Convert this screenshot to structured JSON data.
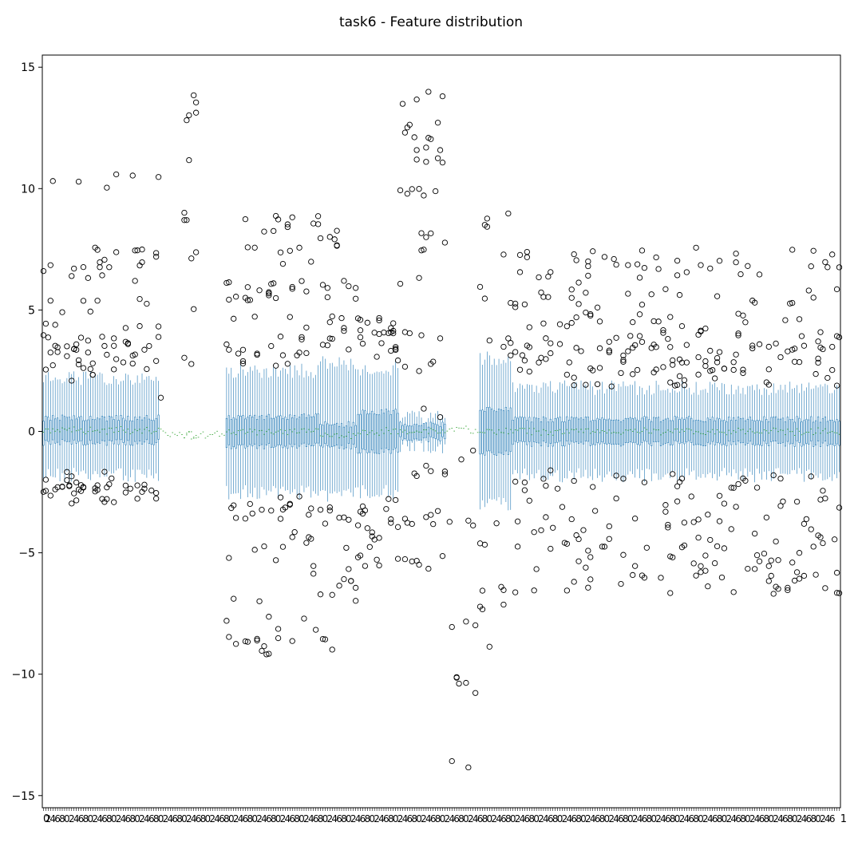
{
  "chart_data": {
    "type": "boxplot",
    "title": "task6 - Feature distribution",
    "xlabel": "",
    "ylabel": "",
    "ylim": [
      -15.5,
      15.5
    ],
    "y_ticks": [
      -15,
      -10,
      -5,
      0,
      5,
      10,
      15
    ],
    "y_tick_labels": [
      "−15",
      "−10",
      "−5",
      "0",
      "5",
      "10",
      "15"
    ],
    "x_tick_label_start": "0",
    "x_tick_label_end": "1",
    "grid": false,
    "legend": "none",
    "feature_count": 340,
    "colors": {
      "box": "#1f77b4",
      "median": "#2ca02c",
      "flier": "#000000",
      "whisker": "#000000"
    },
    "feature_groups": [
      {
        "from": 0,
        "to": 50,
        "q1": -0.45,
        "q3": 0.55,
        "whisker_low": -1.8,
        "whisker_high": 2.2,
        "fliers_high": [
          2.4,
          2.8,
          3.2,
          3.6,
          4.1,
          5.2,
          6.4,
          7.2,
          10.3
        ],
        "fliers_low": [
          -2.0,
          -2.4,
          -2.6
        ]
      },
      {
        "from": 50,
        "to": 52,
        "q1": -0.1,
        "q3": 0.1,
        "whisker_low": -0.15,
        "whisker_high": 0.2,
        "fliers_high": [
          1.2,
          2.5,
          5.0,
          9.9,
          11.1
        ],
        "fliers_low": []
      },
      {
        "from": 52,
        "to": 78,
        "q1": -0.2,
        "q3": -0.1,
        "whisker_low": -0.2,
        "whisker_high": -0.1,
        "fliers_high": [],
        "fliers_low": []
      },
      {
        "from": 60,
        "to": 66,
        "q1": -0.2,
        "q3": -0.1,
        "whisker_low": -0.2,
        "whisker_high": -0.1,
        "fliers_high": [
          3.0,
          5.0,
          7.0,
          9.0,
          11.2,
          13.2,
          14.1
        ],
        "fliers_low": []
      },
      {
        "from": 78,
        "to": 118,
        "q1": -0.6,
        "q3": 0.6,
        "whisker_low": -2.5,
        "whisker_high": 2.5,
        "fliers_high": [
          3.0,
          3.6,
          4.4,
          5.8,
          7.3,
          8.6
        ],
        "fliers_low": [
          -3.0,
          -3.5,
          -4.5,
          -5.5,
          -7.0,
          -8.0,
          -8.8
        ]
      },
      {
        "from": 118,
        "to": 134,
        "q1": -0.6,
        "q3": 0.3,
        "whisker_low": -2.6,
        "whisker_high": 2.8,
        "fliers_high": [
          3.5,
          4.5,
          5.8,
          7.9
        ],
        "fliers_low": [
          -3.5,
          -4.6,
          -6.0,
          -6.8,
          -8.7
        ]
      },
      {
        "from": 134,
        "to": 152,
        "q1": -0.8,
        "q3": 0.8,
        "whisker_low": -2.5,
        "whisker_high": 2.6,
        "fliers_high": [
          3.0,
          3.8,
          4.3
        ],
        "fliers_low": [
          -3.0,
          -3.8,
          -4.5,
          -5.5
        ]
      },
      {
        "from": 152,
        "to": 172,
        "q1": -0.3,
        "q3": 0.3,
        "whisker_low": -0.6,
        "whisker_high": 0.6,
        "fliers_high": [
          0.9,
          2.5,
          4.0,
          6.0,
          7.8,
          9.7,
          11.3,
          12.4,
          13.6
        ],
        "fliers_low": [
          -1.5,
          -3.5,
          -5.5
        ]
      },
      {
        "from": 172,
        "to": 186,
        "q1": 0.0,
        "q3": 0.1,
        "whisker_low": -0.05,
        "whisker_high": 0.15,
        "fliers_high": [],
        "fliers_low": [
          -1.0,
          -4.0,
          -8.0,
          -10.5,
          -13.5,
          -14.1
        ]
      },
      {
        "from": 186,
        "to": 200,
        "q1": -0.9,
        "q3": 0.9,
        "whisker_low": -3.0,
        "whisker_high": 3.0,
        "fliers_high": [
          3.5,
          4.3,
          5.6,
          7.4,
          8.6
        ],
        "fliers_low": [
          -3.5,
          -4.5,
          -6.2,
          -7.5,
          -9.0
        ]
      },
      {
        "from": 200,
        "to": 340,
        "q1": -0.5,
        "q3": 0.5,
        "whisker_low": -1.8,
        "whisker_high": 1.8,
        "fliers_high": [
          2.2,
          2.6,
          3.2,
          3.8,
          4.5,
          5.5,
          6.5,
          7.2
        ],
        "fliers_low": [
          -2.0,
          -2.6,
          -3.2,
          -4.0,
          -4.8,
          -5.7,
          -6.3
        ]
      }
    ]
  }
}
